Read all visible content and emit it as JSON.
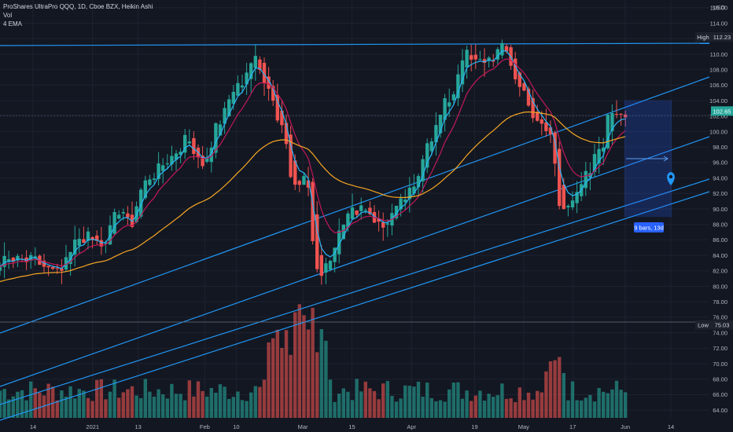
{
  "header": {
    "title": "ProShares UltraPro QQQ, 1D, Cboe BZX, Heikin Ashi",
    "indicator_vol": "Vol",
    "indicator_ema": "4 EMA"
  },
  "price_axis": {
    "currency": "USD",
    "ticks": [
      "116.00",
      "114.00",
      "112.00",
      "110.00",
      "108.00",
      "106.00",
      "104.00",
      "102.00",
      "100.00",
      "98.00",
      "96.00",
      "94.00",
      "92.00",
      "90.00",
      "88.00",
      "86.00",
      "84.00",
      "82.00",
      "80.00",
      "78.00",
      "76.00",
      "74.00",
      "72.00",
      "70.00",
      "68.00",
      "66.00",
      "64.00"
    ]
  },
  "time_axis": {
    "labels": [
      "14",
      "2021",
      "13",
      "Feb",
      "10",
      "Mar",
      "15",
      "Apr",
      "19",
      "May",
      "17",
      "Jun",
      "14"
    ]
  },
  "markers": {
    "high_label": "High",
    "high_value": "112.23",
    "low_label": "Low",
    "low_value": "75.03",
    "last_price": "102.65"
  },
  "projection": {
    "label": "9 bars, 13d"
  },
  "colors": {
    "background": "#131722",
    "up": "#26a69a",
    "down": "#ef5350",
    "trendline": "#2196f3",
    "ema_fast": "#29b6f6",
    "ema_mid": "#c2185b",
    "ema_slow": "#f5a623"
  },
  "chart_data": {
    "type": "candlestick",
    "title": "ProShares UltraPro QQQ, 1D, Cboe BZX, Heikin Ashi",
    "y_axis": {
      "min": 63,
      "max": 117,
      "unit": "USD"
    },
    "x_axis": {
      "start": "2020-12-14",
      "end": "2021-06-14"
    },
    "high": 112.23,
    "low": 75.03,
    "last": 102.65,
    "close_path": [
      [
        "2020-12-14",
        83.2
      ],
      [
        "2020-12-21",
        81.6
      ],
      [
        "2020-12-28",
        86.4
      ],
      [
        "2021-01-04",
        85.2
      ],
      [
        "2021-01-06",
        89.6
      ],
      [
        "2021-01-11",
        88.4
      ],
      [
        "2021-01-14",
        92.6
      ],
      [
        "2021-01-21",
        96.4
      ],
      [
        "2021-01-27",
        98.8
      ],
      [
        "2021-02-01",
        96.0
      ],
      [
        "2021-02-05",
        101.2
      ],
      [
        "2021-02-10",
        105.6
      ],
      [
        "2021-02-15",
        109.2
      ],
      [
        "2021-02-18",
        107.0
      ],
      [
        "2021-02-23",
        101.0
      ],
      [
        "2021-02-26",
        94.0
      ],
      [
        "2021-03-02",
        93.8
      ],
      [
        "2021-03-05",
        81.5
      ],
      [
        "2021-03-09",
        83.8
      ],
      [
        "2021-03-12",
        88.6
      ],
      [
        "2021-03-18",
        90.4
      ],
      [
        "2021-03-24",
        87.6
      ],
      [
        "2021-03-26",
        89.2
      ],
      [
        "2021-04-01",
        92.0
      ],
      [
        "2021-04-06",
        99.2
      ],
      [
        "2021-04-12",
        104.2
      ],
      [
        "2021-04-16",
        110.0
      ],
      [
        "2021-04-19",
        108.8
      ],
      [
        "2021-04-23",
        109.4
      ],
      [
        "2021-04-27",
        110.6
      ],
      [
        "2021-05-03",
        105.2
      ],
      [
        "2021-05-07",
        100.8
      ],
      [
        "2021-05-11",
        99.6
      ],
      [
        "2021-05-13",
        90.6
      ],
      [
        "2021-05-18",
        91.4
      ],
      [
        "2021-05-21",
        94.2
      ],
      [
        "2021-05-25",
        98.0
      ],
      [
        "2021-05-28",
        102.65
      ]
    ],
    "volume_bars": 120,
    "projection": {
      "bars": 9,
      "days": 13
    }
  }
}
